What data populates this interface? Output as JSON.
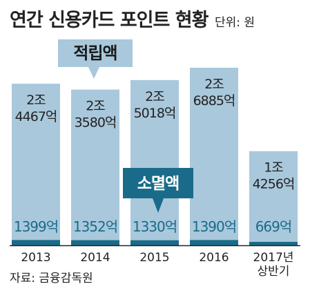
{
  "header": {
    "title": "연간 신용카드 포인트 현황",
    "unit": "단위: 원"
  },
  "source": "자료: 금융감독원",
  "colors": {
    "accumulated_bar": "#a9c8dc",
    "expired_bar": "#1a6b89",
    "expired_text": "#1a6b89",
    "callout_dark_bg": "#1a6b89",
    "callout_light_bg": "#a9c8dc",
    "text": "#222222",
    "axis": "#222222"
  },
  "chart_data": {
    "type": "bar",
    "title": "연간 신용카드 포인트 현황",
    "unit": "단위: 원",
    "categories": [
      "2013",
      "2014",
      "2015",
      "2016",
      "2017년 상반기"
    ],
    "category_lines": [
      [
        "2013"
      ],
      [
        "2014"
      ],
      [
        "2015"
      ],
      [
        "2016"
      ],
      [
        "2017년",
        "상반기"
      ]
    ],
    "series": [
      {
        "name": "적립액",
        "unit": "억",
        "values": [
          24467,
          23580,
          25018,
          26885,
          14256
        ],
        "labels": [
          [
            "2조",
            "4467억"
          ],
          [
            "2조",
            "3580억"
          ],
          [
            "2조",
            "5018억"
          ],
          [
            "2조",
            "6885억"
          ],
          [
            "1조",
            "4256억"
          ]
        ]
      },
      {
        "name": "소멸액",
        "unit": "억",
        "values": [
          1399,
          1352,
          1330,
          1390,
          669
        ],
        "labels": [
          "1399억",
          "1352억",
          "1330억",
          "1390억",
          "669억"
        ]
      }
    ],
    "callouts": {
      "accumulated": "적립액",
      "expired": "소멸액"
    },
    "ylim": [
      0,
      26885
    ],
    "grid": false,
    "legend": "callouts"
  }
}
